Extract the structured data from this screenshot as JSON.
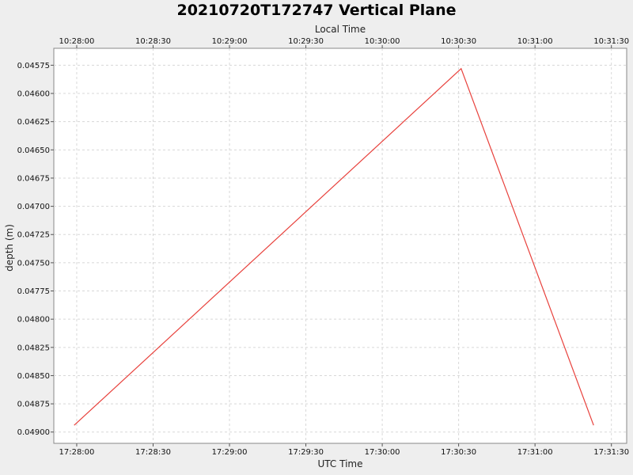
{
  "chart_data": {
    "type": "line",
    "title": "20210720T172747 Vertical Plane",
    "xlabel_bottom": "UTC Time",
    "xlabel_top": "Local Time",
    "ylabel": "depth (m)",
    "y_inverted": true,
    "ylim": [
      0.0456,
      0.0491
    ],
    "yticks": [
      "0.04575",
      "0.04600",
      "0.04625",
      "0.04650",
      "0.04675",
      "0.04700",
      "0.04725",
      "0.04750",
      "0.04775",
      "0.04800",
      "0.04825",
      "0.04850",
      "0.04875",
      "0.04900"
    ],
    "xlim": [
      "17:27:51",
      "17:31:36"
    ],
    "xticks_bottom": [
      "17:28:00",
      "17:28:30",
      "17:29:00",
      "17:29:30",
      "17:30:00",
      "17:30:30",
      "17:31:00",
      "17:31:30"
    ],
    "xticks_top": [
      "10:28:00",
      "10:28:30",
      "10:29:00",
      "10:29:30",
      "10:30:00",
      "10:30:30",
      "10:31:00",
      "10:31:30"
    ],
    "grid": true,
    "colors": {
      "series": "#e8413c",
      "plot_bg": "#ffffff",
      "page_bg": "#eeeeee",
      "grid": "#d8d8d8"
    },
    "series": [
      {
        "x": [
          "17:27:59",
          "17:30:31",
          "17:31:23"
        ],
        "y": [
          0.04894,
          0.04578,
          0.04894
        ]
      }
    ]
  }
}
